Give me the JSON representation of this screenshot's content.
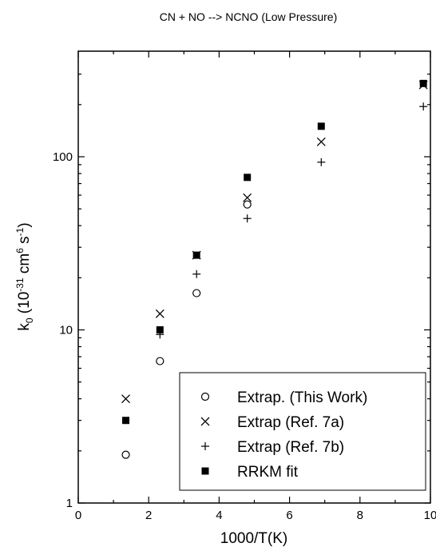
{
  "chart_data": {
    "type": "scatter",
    "title": "CN + NO --> NCNO (Low Pressure)",
    "xlabel": "1000/T(K)",
    "ylabel": {
      "base": "k",
      "base_sub": "0",
      "open": " (10",
      "exp1": "-31",
      "mid": " cm",
      "exp2": "6",
      "mid2": " s",
      "exp3": "-1",
      "close": ")"
    },
    "x_ticks": [
      "0",
      "2",
      "4",
      "6",
      "8",
      "10"
    ],
    "y_ticks": [
      "1",
      "10",
      "100"
    ],
    "xlim": [
      0,
      10
    ],
    "ylim": [
      1,
      330
    ],
    "y_scale": "log",
    "grid": false,
    "legend_position": "bottom-right",
    "series": [
      {
        "name": "Extrap. (This Work)",
        "marker": "open-circle",
        "x": [
          1.35,
          2.32,
          3.36,
          4.8
        ],
        "y": [
          1.9,
          6.6,
          16.3,
          53
        ]
      },
      {
        "name": "Extrap (Ref. 7a)",
        "marker": "x",
        "x": [
          1.35,
          2.32,
          3.36,
          4.8,
          6.9,
          9.8
        ],
        "y": [
          4.0,
          12.4,
          27,
          58,
          122,
          260
        ]
      },
      {
        "name": "Extrap (Ref. 7b)",
        "marker": "plus",
        "x": [
          2.32,
          3.36,
          4.8,
          6.9,
          9.8
        ],
        "y": [
          9.4,
          21,
          44,
          93,
          195
        ]
      },
      {
        "name": "RRKM fit",
        "marker": "filled-square",
        "x": [
          1.35,
          2.32,
          3.36,
          4.8,
          6.9,
          9.8
        ],
        "y": [
          3.0,
          10.0,
          27,
          76,
          150,
          265
        ]
      }
    ]
  }
}
